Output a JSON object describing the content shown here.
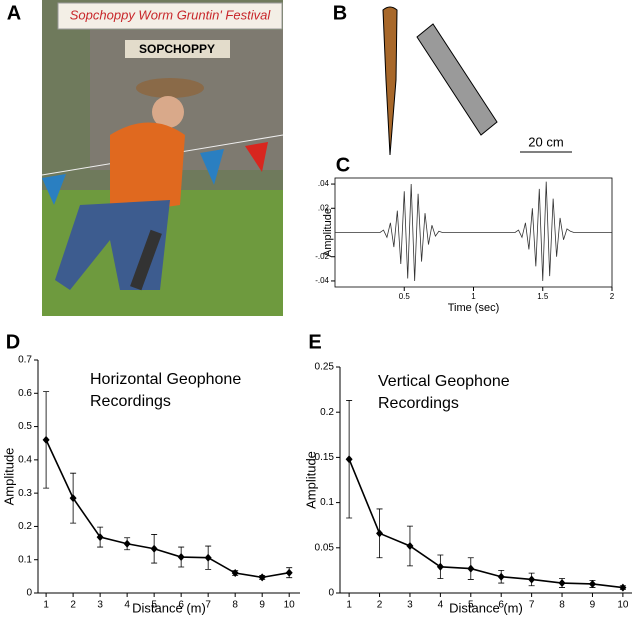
{
  "panel_labels": [
    "A",
    "B",
    "C",
    "D",
    "E"
  ],
  "photo_text": [
    "Sopchoppy Worm Gruntin' Festival",
    "SOPCHOPPY"
  ],
  "scale_bar": "20 cm",
  "chart_data": [
    {
      "type": "line",
      "xlabel": "Time (sec)",
      "ylabel": "Amplitude",
      "color": "#333333",
      "x": [
        0,
        0.025,
        0.05,
        0.075,
        0.1,
        0.125,
        0.15,
        0.175,
        0.2,
        0.225,
        0.25,
        0.275,
        0.3,
        0.325,
        0.35,
        0.375,
        0.4,
        0.425,
        0.45,
        0.475,
        0.5,
        0.525,
        0.55,
        0.575,
        0.6,
        0.625,
        0.65,
        0.675,
        0.7,
        0.725,
        0.75,
        0.775,
        0.8,
        0.825,
        0.85,
        0.875,
        0.9,
        0.925,
        0.95,
        0.975,
        1,
        1.025,
        1.05,
        1.075,
        1.1,
        1.125,
        1.15,
        1.175,
        1.2,
        1.225,
        1.25,
        1.275,
        1.3,
        1.325,
        1.35,
        1.375,
        1.4,
        1.425,
        1.45,
        1.475,
        1.5,
        1.525,
        1.55,
        1.575,
        1.6,
        1.625,
        1.65,
        1.675,
        1.7,
        1.725,
        1.75,
        1.775,
        1.8,
        1.825,
        1.85,
        1.875,
        1.9,
        1.925,
        1.95,
        1.975,
        2
      ],
      "values": [
        0,
        0,
        0,
        0,
        0,
        0,
        0,
        0,
        0,
        0,
        0,
        0,
        0,
        0,
        0.002,
        -0.004,
        0.008,
        -0.012,
        0.018,
        -0.026,
        0.034,
        -0.038,
        0.04,
        -0.04,
        0.032,
        -0.024,
        0.016,
        -0.01,
        0.006,
        -0.003,
        0.001,
        0,
        0,
        0,
        0,
        0,
        0,
        0,
        0,
        0,
        0,
        0,
        0,
        0,
        0,
        0,
        0,
        0,
        0,
        0,
        0,
        0,
        0,
        0.002,
        -0.004,
        0.008,
        -0.014,
        0.02,
        -0.028,
        0.036,
        -0.04,
        0.042,
        -0.036,
        0.028,
        -0.02,
        0.012,
        -0.006,
        0.003,
        0.001,
        0,
        0,
        0,
        0,
        0,
        0,
        0,
        0,
        0,
        0,
        0,
        0
      ],
      "xlim": [
        0,
        2
      ],
      "xticks": [
        0.5,
        1,
        1.5,
        2
      ],
      "ylim": [
        -0.045,
        0.045
      ],
      "yticks": [
        {
          "value": 0.04,
          "label": ".04"
        },
        {
          "value": 0.02,
          "label": ".02"
        },
        {
          "value": -0.02,
          "label": "-.02"
        },
        {
          "value": -0.04,
          "label": "-.04"
        }
      ]
    },
    {
      "type": "line",
      "xlabel": "Distance (m)",
      "ylabel": "Amplitude",
      "color": "#000000",
      "markers": true,
      "annotations": [
        "Horizontal Geophone",
        "Recordings"
      ],
      "x": [
        1,
        2,
        3,
        4,
        5,
        6,
        7,
        8,
        9,
        10
      ],
      "values": [
        0.46,
        0.285,
        0.168,
        0.148,
        0.133,
        0.108,
        0.106,
        0.06,
        0.047,
        0.061
      ],
      "errors": [
        0.145,
        0.075,
        0.03,
        0.018,
        0.043,
        0.03,
        0.035,
        0.007,
        0.006,
        0.015
      ],
      "xlim": [
        0.7,
        10.4
      ],
      "xticks": [
        1,
        2,
        3,
        4,
        5,
        6,
        7,
        8,
        9,
        10
      ],
      "ylim": [
        0,
        0.7
      ],
      "yticks": [
        0,
        0.1,
        0.2,
        0.3,
        0.4,
        0.5,
        0.6,
        0.7
      ]
    },
    {
      "type": "line",
      "xlabel": "Distance (m)",
      "ylabel": "Amplitude",
      "color": "#000000",
      "markers": true,
      "annotations": [
        "Vertical Geophone",
        "Recordings"
      ],
      "x": [
        1,
        2,
        3,
        4,
        5,
        6,
        7,
        8,
        9,
        10
      ],
      "values": [
        0.148,
        0.066,
        0.052,
        0.029,
        0.027,
        0.018,
        0.015,
        0.011,
        0.01,
        0.006
      ],
      "errors": [
        0.065,
        0.027,
        0.022,
        0.013,
        0.012,
        0.007,
        0.007,
        0.005,
        0.004,
        0.002
      ],
      "xlim": [
        0.7,
        10.3
      ],
      "xticks": [
        1,
        2,
        3,
        4,
        5,
        6,
        7,
        8,
        9,
        10
      ],
      "ylim": [
        0,
        0.25
      ],
      "yticks": [
        0,
        0.05,
        0.1,
        0.15,
        0.2,
        0.25
      ]
    }
  ]
}
